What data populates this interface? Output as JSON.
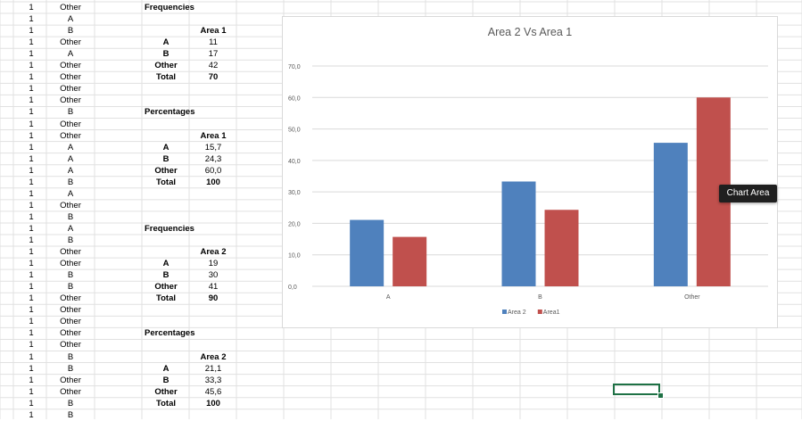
{
  "colA": [
    "1",
    "1",
    "1",
    "1",
    "1",
    "1",
    "1",
    "1",
    "1",
    "1",
    "1",
    "1",
    "1",
    "1",
    "1",
    "1",
    "1",
    "1",
    "1",
    "1",
    "1",
    "1",
    "1",
    "1",
    "1",
    "1",
    "1",
    "1",
    "1",
    "1",
    "1",
    "1",
    "1",
    "1",
    "1",
    "1"
  ],
  "colB": [
    "Other",
    "A",
    "B",
    "Other",
    "A",
    "Other",
    "Other",
    "Other",
    "Other",
    "B",
    "Other",
    "Other",
    "A",
    "A",
    "A",
    "B",
    "A",
    "Other",
    "B",
    "A",
    "B",
    "Other",
    "Other",
    "B",
    "B",
    "Other",
    "Other",
    "Other",
    "Other",
    "Other",
    "B",
    "B",
    "Other",
    "Other",
    "B",
    "B"
  ],
  "tables": [
    {
      "title": "Frequencies",
      "header": "Area 1",
      "rows": [
        {
          "label": "A",
          "value": "11"
        },
        {
          "label": "B",
          "value": "17"
        },
        {
          "label": "Other",
          "value": "42"
        }
      ],
      "total_label": "Total",
      "total_value": "70"
    },
    {
      "title": "Percentages",
      "header": "Area 1",
      "rows": [
        {
          "label": "A",
          "value": "15,7"
        },
        {
          "label": "B",
          "value": "24,3"
        },
        {
          "label": "Other",
          "value": "60,0"
        }
      ],
      "total_label": "Total",
      "total_value": "100"
    },
    {
      "title": "Frequencies",
      "header": "Area 2",
      "rows": [
        {
          "label": "A",
          "value": "19"
        },
        {
          "label": "B",
          "value": "30"
        },
        {
          "label": "Other",
          "value": "41"
        }
      ],
      "total_label": "Total",
      "total_value": "90"
    },
    {
      "title": "Percentages",
      "header": "Area 2",
      "rows": [
        {
          "label": "A",
          "value": "21,1"
        },
        {
          "label": "B",
          "value": "33,3"
        },
        {
          "label": "Other",
          "value": "45,6"
        }
      ],
      "total_label": "Total",
      "total_value": "100"
    }
  ],
  "tooltip": "Chart Area",
  "chart_data": {
    "type": "bar",
    "title": "Area 2 Vs Area 1",
    "categories": [
      "A",
      "B",
      "Other"
    ],
    "series": [
      {
        "name": "Area 2",
        "values": [
          21.1,
          33.3,
          45.6
        ],
        "color": "#4f81bd"
      },
      {
        "name": "Area1",
        "values": [
          15.7,
          24.3,
          60.0
        ],
        "color": "#c0504d"
      }
    ],
    "ylim": [
      0,
      70
    ],
    "yticks": [
      "0,0",
      "10,0",
      "20,0",
      "30,0",
      "40,0",
      "50,0",
      "60,0",
      "70,0"
    ],
    "grid": true,
    "legend": "bottom"
  }
}
